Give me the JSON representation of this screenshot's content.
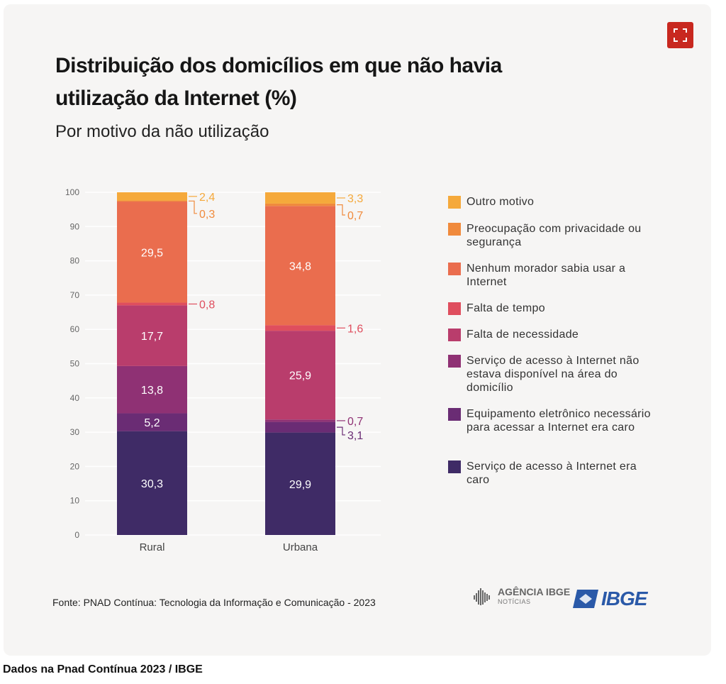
{
  "title": "Distribuição dos domicílios em que não havia utilização da Internet (%)",
  "subtitle": "Por motivo da não utilização",
  "source": "Fonte: PNAD Contínua: Tecnologia da Informação e Comunicação - 2023",
  "logos": {
    "agencia": "AGÊNCIA IBGE",
    "agencia_sub": "NOTÍCIAS",
    "ibge": "IBGE"
  },
  "caption": "Dados na Pnad Contínua 2023 / IBGE",
  "icons": {
    "expand": "expand-icon"
  },
  "legend": [
    {
      "label": "Outro motivo",
      "color": "#f5a93b"
    },
    {
      "label": "Preocupação com privacidade ou segurança",
      "color": "#f08a3c"
    },
    {
      "label": "Nenhum morador sabia usar a Internet",
      "color": "#ea6d4e"
    },
    {
      "label": "Falta de tempo",
      "color": "#df4e5e"
    },
    {
      "label": "Falta de necessidade",
      "color": "#b93d6c"
    },
    {
      "label": "Serviço de acesso à Internet não estava disponível na área do domicílio",
      "color": "#8f3174"
    },
    {
      "label": "Equipamento eletrônico necessário para acessar a Internet era caro",
      "color": "#6a2c74"
    },
    {
      "label": "Serviço de acesso à Internet era caro",
      "color": "#3f2b66"
    }
  ],
  "chart_data": {
    "type": "bar",
    "stacked": true,
    "categories": [
      "Rural",
      "Urbana"
    ],
    "ylim": [
      0,
      100
    ],
    "yticks": [
      0,
      10,
      20,
      30,
      40,
      50,
      60,
      70,
      80,
      90,
      100
    ],
    "grid": true,
    "series": [
      {
        "name": "Serviço de acesso à Internet era caro",
        "values": [
          30.3,
          29.9
        ],
        "labels": [
          "30,3",
          "29,9"
        ],
        "color": "#3f2b66"
      },
      {
        "name": "Equipamento eletrônico necessário para acessar a Internet era caro",
        "values": [
          5.2,
          3.1
        ],
        "labels": [
          "5,2",
          "3,1"
        ],
        "color": "#6a2c74"
      },
      {
        "name": "Serviço de acesso à Internet não estava disponível na área do domicílio",
        "values": [
          13.8,
          0.7
        ],
        "labels": [
          "13,8",
          "0,7"
        ],
        "color": "#8f3174"
      },
      {
        "name": "Falta de necessidade",
        "values": [
          17.7,
          25.9
        ],
        "labels": [
          "17,7",
          "25,9"
        ],
        "color": "#b93d6c"
      },
      {
        "name": "Falta de tempo",
        "values": [
          0.8,
          1.6
        ],
        "labels": [
          "0,8",
          "1,6"
        ],
        "color": "#df4e5e"
      },
      {
        "name": "Nenhum morador sabia usar a Internet",
        "values": [
          29.5,
          34.8
        ],
        "labels": [
          "29,5",
          "34,8"
        ],
        "color": "#ea6d4e"
      },
      {
        "name": "Preocupação com privacidade ou segurança",
        "values": [
          0.3,
          0.7
        ],
        "labels": [
          "0,3",
          "0,7"
        ],
        "color": "#f08a3c"
      },
      {
        "name": "Outro motivo",
        "values": [
          2.4,
          3.3
        ],
        "labels": [
          "2,4",
          "3,3"
        ],
        "color": "#f5a93b"
      }
    ]
  }
}
